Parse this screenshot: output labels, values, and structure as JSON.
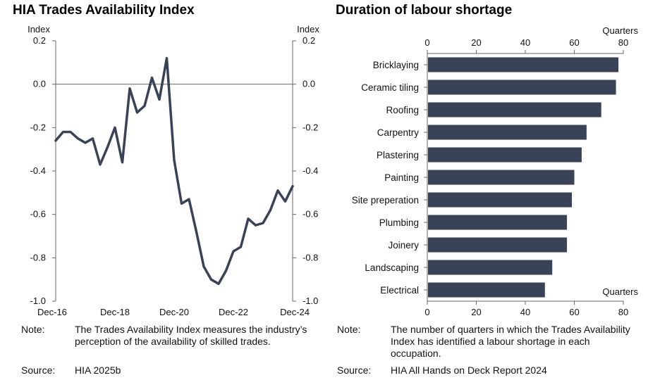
{
  "left_title": "HIA Trades Availability Index",
  "right_title": "Duration of labour shortage",
  "chart_data": [
    {
      "type": "line",
      "title": "HIA Trades Availability Index",
      "ylabel_left": "Index",
      "ylabel_right": "Index",
      "ylim": [
        -1.0,
        0.2
      ],
      "yticks": [
        "0.2",
        "0.0",
        "-0.2",
        "-0.4",
        "-0.6",
        "-0.8",
        "-1.0"
      ],
      "xticks": [
        "Dec-16",
        "Dec-18",
        "Dec-20",
        "Dec-22",
        "Dec-24"
      ],
      "xrange": [
        "Dec-16",
        "Dec-24"
      ],
      "series": [
        {
          "color": "#3a4257",
          "x": [
            "Dec-16",
            "Mar-17",
            "Jun-17",
            "Sep-17",
            "Dec-17",
            "Mar-18",
            "Jun-18",
            "Sep-18",
            "Dec-18",
            "Mar-19",
            "Jun-19",
            "Sep-19",
            "Dec-19",
            "Mar-20",
            "Jun-20",
            "Sep-20",
            "Dec-20",
            "Mar-21",
            "Jun-21",
            "Sep-21",
            "Dec-21",
            "Mar-22",
            "Jun-22",
            "Sep-22",
            "Dec-22",
            "Mar-23",
            "Jun-23",
            "Sep-23",
            "Dec-23",
            "Mar-24",
            "Jun-24",
            "Sep-24",
            "Dec-24"
          ],
          "values": [
            -0.26,
            -0.22,
            -0.22,
            -0.25,
            -0.27,
            -0.25,
            -0.37,
            -0.29,
            -0.2,
            -0.36,
            -0.02,
            -0.13,
            -0.1,
            0.03,
            -0.07,
            0.12,
            -0.35,
            -0.55,
            -0.53,
            -0.68,
            -0.84,
            -0.9,
            -0.92,
            -0.86,
            -0.77,
            -0.75,
            -0.62,
            -0.65,
            -0.64,
            -0.58,
            -0.49,
            -0.54,
            -0.47
          ]
        }
      ],
      "grid": false,
      "legend": "none"
    },
    {
      "type": "bar",
      "orientation": "horizontal",
      "title": "Duration of labour shortage",
      "xlabel": "Quarters",
      "xlim": [
        0,
        80
      ],
      "xticks": [
        "0",
        "20",
        "40",
        "60",
        "80"
      ],
      "categories": [
        "Bricklaying",
        "Ceramic tiling",
        "Roofing",
        "Carpentry",
        "Plastering",
        "Painting",
        "Site preperation",
        "Plumbing",
        "Joinery",
        "Landscaping",
        "Electrical"
      ],
      "values": [
        78,
        77,
        71,
        65,
        63,
        60,
        59,
        57,
        57,
        51,
        48
      ],
      "color": "#3a4257",
      "legend": "none"
    }
  ],
  "left_note": {
    "note_key": "Note:",
    "note_text": "The Trades Availability Index measures the industry’s perception of the availability of skilled trades.",
    "source_key": "Source:",
    "source_text": "HIA 2025b"
  },
  "right_note": {
    "note_key": "Note:",
    "note_text": "The number of quarters in which the Trades Availability Index has identified a labour shortage in each occupation.",
    "source_key": "Source:",
    "source_text": "HIA All Hands on Deck Report 2024"
  }
}
